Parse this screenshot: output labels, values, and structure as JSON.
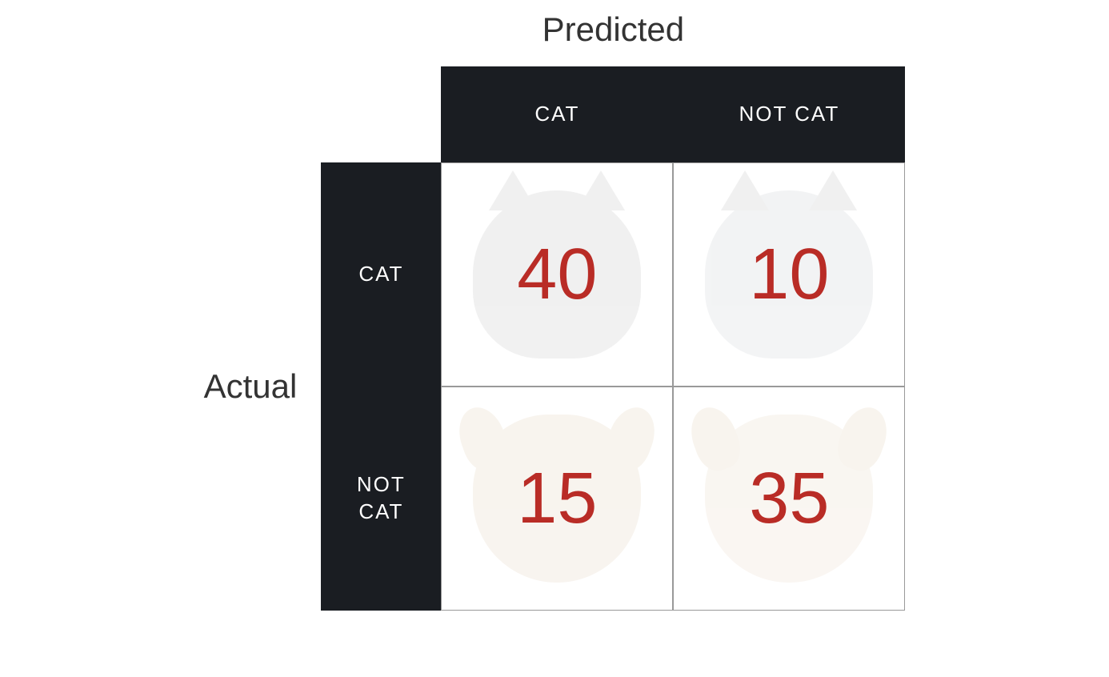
{
  "confusion_matrix": {
    "type": "confusion-matrix",
    "title_predicted": "Predicted",
    "title_actual": "Actual",
    "column_headers": [
      "CAT",
      "NOT CAT"
    ],
    "row_headers": [
      "CAT",
      "NOT\nCAT"
    ],
    "cells": [
      [
        40,
        10
      ],
      [
        15,
        35
      ]
    ],
    "value_color": "#b92c26",
    "value_fontsize": 90,
    "header_bg_color": "#1a1d22",
    "header_text_color": "#ffffff",
    "header_fontsize": 26,
    "axis_label_fontsize": 42,
    "axis_label_color": "#333333",
    "cell_border_color": "#999999",
    "cell_bg_color": "#ffffff",
    "background_color": "#ffffff",
    "illustration_opacity": 0.12,
    "illustrations": [
      [
        "tabby-cat",
        "grey-cat"
      ],
      [
        "shiba-dog",
        "labrador-dog"
      ]
    ],
    "grid_dimensions": {
      "row_header_width": 150,
      "data_col_width": 290,
      "col_header_height": 120,
      "data_row_height": 280
    }
  }
}
